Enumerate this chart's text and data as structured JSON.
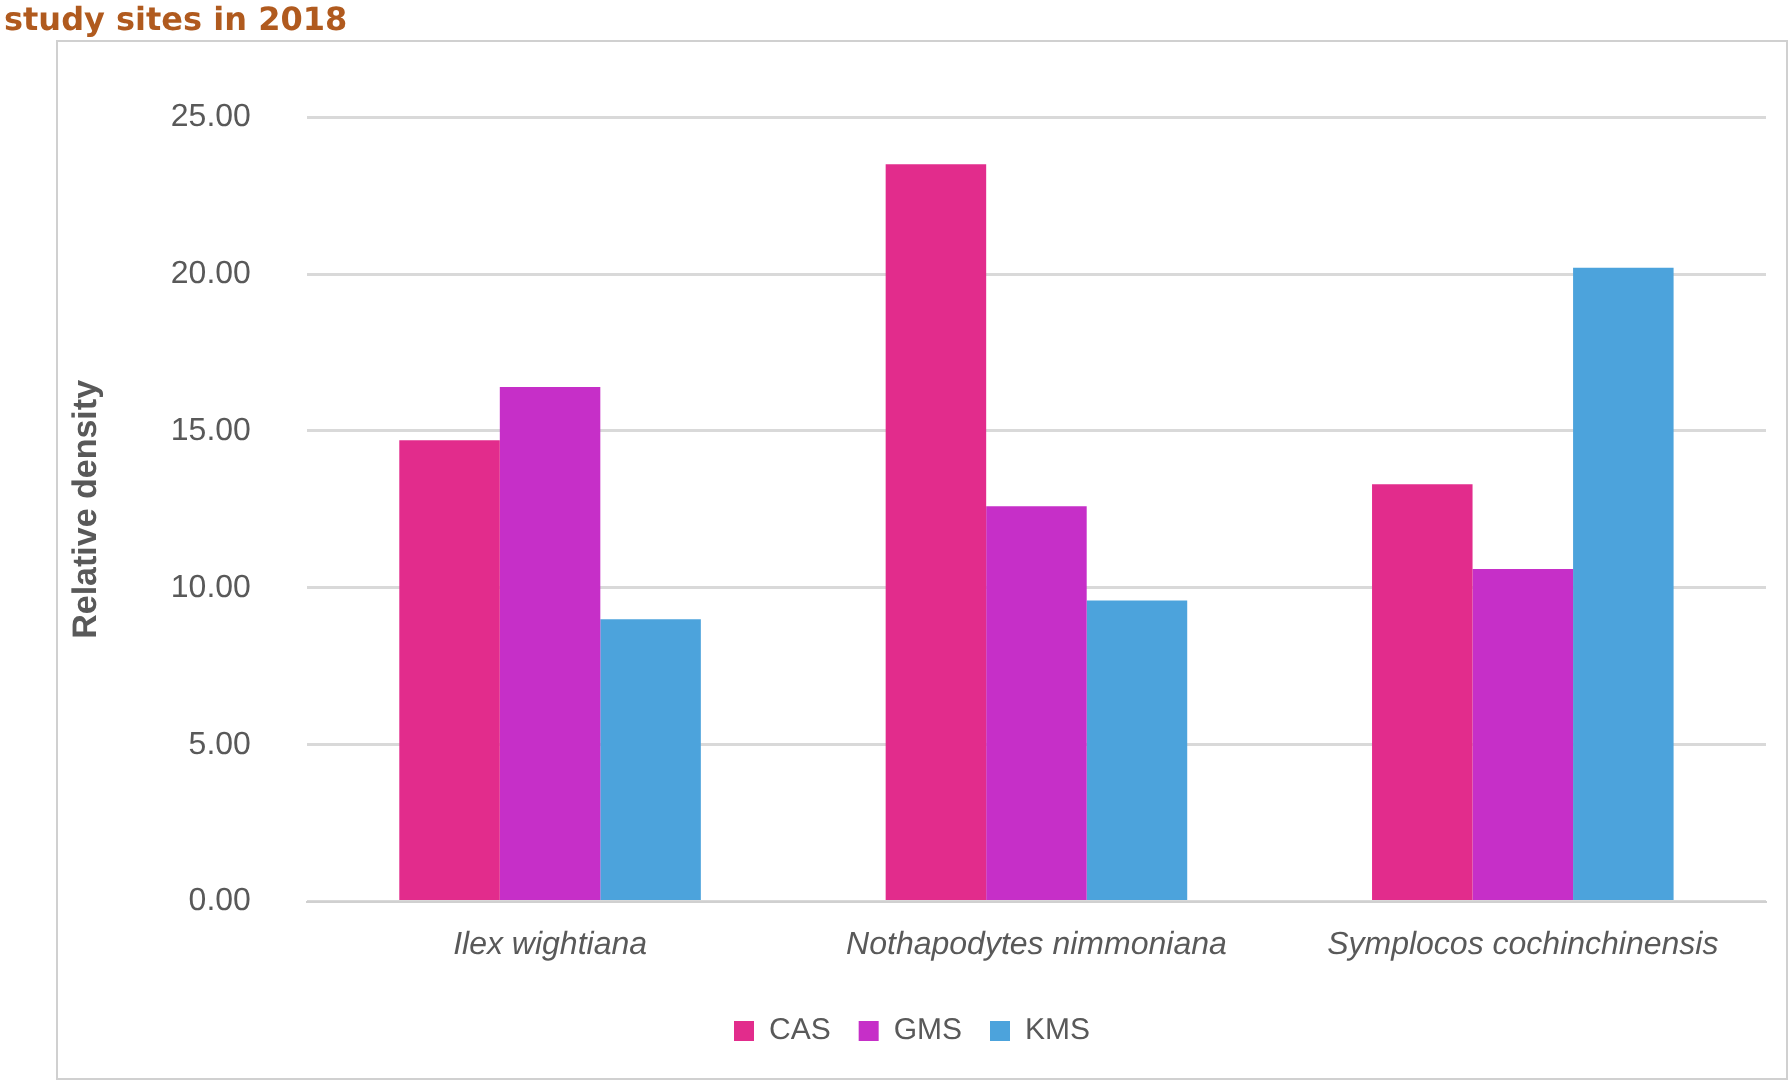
{
  "chart_data": {
    "type": "bar",
    "title": "study sites in 2018",
    "ylabel": "Relative density",
    "categories": [
      "Ilex wightiana",
      "Nothapodytes nimmoniana",
      "Symplocos cochinchinensis"
    ],
    "series": [
      {
        "name": "CAS",
        "color": "#e22c8c",
        "values": [
          14.7,
          23.5,
          13.3
        ]
      },
      {
        "name": "GMS",
        "color": "#c62fc8",
        "values": [
          16.4,
          12.6,
          10.6
        ]
      },
      {
        "name": "KMS",
        "color": "#4ca3dc",
        "values": [
          9.0,
          9.6,
          20.2
        ]
      }
    ],
    "ylim": [
      0,
      25
    ],
    "yticks": [
      {
        "value": 0,
        "label": "0.00"
      },
      {
        "value": 5,
        "label": "5.00"
      },
      {
        "value": 10,
        "label": "10.00"
      },
      {
        "value": 15,
        "label": "15.00"
      },
      {
        "value": 20,
        "label": "20.00"
      },
      {
        "value": 25,
        "label": "25.00"
      }
    ],
    "grid": "y",
    "legend": "bottom"
  }
}
